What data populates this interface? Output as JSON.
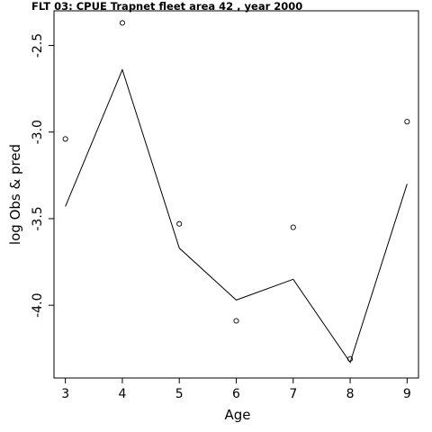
{
  "chart_data": {
    "type": "line",
    "title": "FLT 03:     CPUE        Trapnet   fleet         area         42              , year 2000",
    "xlabel": "Age",
    "ylabel": "log Obs & pred",
    "xlim": [
      2.8,
      9.2
    ],
    "ylim": [
      -4.42,
      -2.3
    ],
    "x_ticks": [
      3,
      4,
      5,
      6,
      7,
      8,
      9
    ],
    "y_ticks": [
      -2.5,
      -3.0,
      -3.5,
      -4.0
    ],
    "y_tick_labels": [
      "-2.5",
      "-3.0",
      "-3.5",
      "-4.0"
    ],
    "grid": false,
    "legend": "none",
    "series": [
      {
        "style": "points",
        "x": [
          3,
          4,
          5,
          6,
          7,
          8,
          9
        ],
        "values": [
          -3.04,
          -2.37,
          -3.53,
          -4.09,
          -3.55,
          -4.31,
          -2.94
        ]
      },
      {
        "style": "line",
        "x": [
          3,
          4,
          5,
          6,
          7,
          8,
          9
        ],
        "values": [
          -3.43,
          -2.64,
          -3.67,
          -3.97,
          -3.85,
          -4.33,
          -3.3
        ]
      }
    ]
  }
}
